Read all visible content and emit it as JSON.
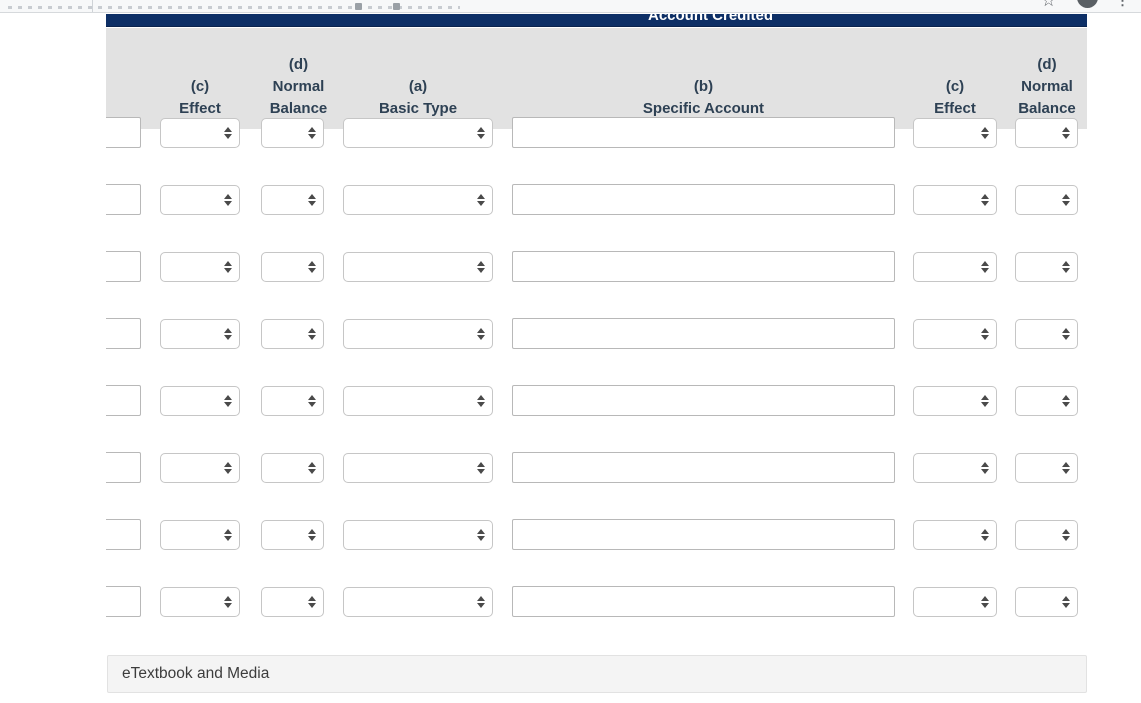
{
  "browser_bar": {
    "bookmark_star_glyph": "☆",
    "menu_dots_glyph": "⋮"
  },
  "worksheet": {
    "group_header": "Account Credited",
    "columns": [
      {
        "lines": [
          "(c)",
          "Effect"
        ]
      },
      {
        "lines": [
          "(d)",
          "Normal",
          "Balance"
        ]
      },
      {
        "lines": [
          "(a)",
          "Basic Type"
        ]
      },
      {
        "lines": [
          "(b)",
          "Specific Account"
        ]
      },
      {
        "lines": [
          "(c)",
          "Effect"
        ]
      },
      {
        "lines": [
          "(d)",
          "Normal",
          "Balance"
        ]
      }
    ],
    "row_count": 8,
    "field_value": "",
    "select_value": ""
  },
  "footer": {
    "etextbook_label": "eTextbook and Media"
  },
  "colors": {
    "navy_header": "#0d2f66",
    "column_header_bg": "#e2e2e2",
    "column_header_text": "#2e4154",
    "footer_bg": "#f4f4f4"
  }
}
